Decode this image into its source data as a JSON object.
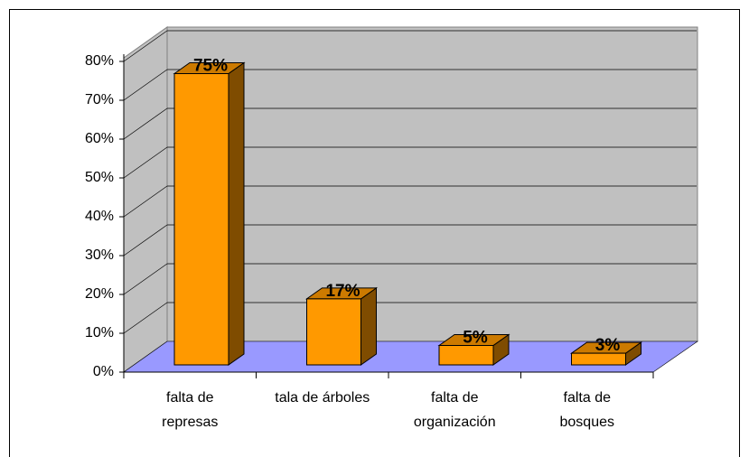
{
  "chart_data": {
    "type": "bar3d",
    "categories": [
      "falta de represas",
      "tala de árboles",
      "falta de organización",
      "falta de bosques"
    ],
    "values": [
      75,
      17,
      5,
      3
    ],
    "value_labels": [
      "75%",
      "17%",
      "5%",
      "3%"
    ],
    "color": "#ff9900",
    "ylim": [
      0,
      80
    ],
    "yticks": [
      {
        "value": 0,
        "label": "0%"
      },
      {
        "value": 10,
        "label": "10%"
      },
      {
        "value": 20,
        "label": "20%"
      },
      {
        "value": 30,
        "label": "30%"
      },
      {
        "value": 40,
        "label": "40%"
      },
      {
        "value": 50,
        "label": "50%"
      },
      {
        "value": 60,
        "label": "60%"
      },
      {
        "value": 70,
        "label": "70%"
      },
      {
        "value": 80,
        "label": "80%"
      }
    ],
    "grid": true
  }
}
